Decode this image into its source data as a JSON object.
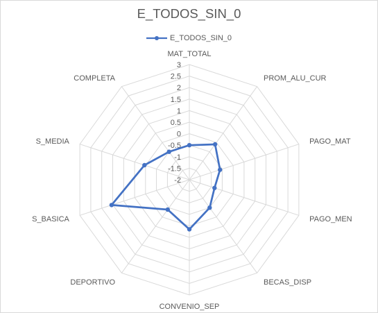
{
  "chart_data": {
    "type": "radar",
    "title": "E_TODOS_SIN_0",
    "legend_position": "top",
    "series": [
      {
        "name": "E_TODOS_SIN_0",
        "color": "#4472c4",
        "values": [
          -0.5,
          -0.1,
          -0.6,
          -0.85,
          -0.5,
          0.15,
          -0.4,
          1.55,
          0.05,
          -0.5
        ]
      }
    ],
    "categories": [
      "MAT_TOTAL",
      "PROM_ALU_CUR",
      "PAGO_MAT",
      "PAGO_MEN",
      "BECAS_DISP",
      "CONVENIO_SEP",
      "DEPORTIVO",
      "S_BASICA",
      "S_MEDIA",
      "COMPLETA"
    ],
    "r_axis": {
      "min": -2,
      "max": 3,
      "step": 0.5,
      "tick_labels": [
        "-2",
        "-1.5",
        "-1",
        "-0.5",
        "0",
        "0.5",
        "1",
        "1.5",
        "2",
        "2.5",
        "3"
      ]
    },
    "grid": true
  }
}
